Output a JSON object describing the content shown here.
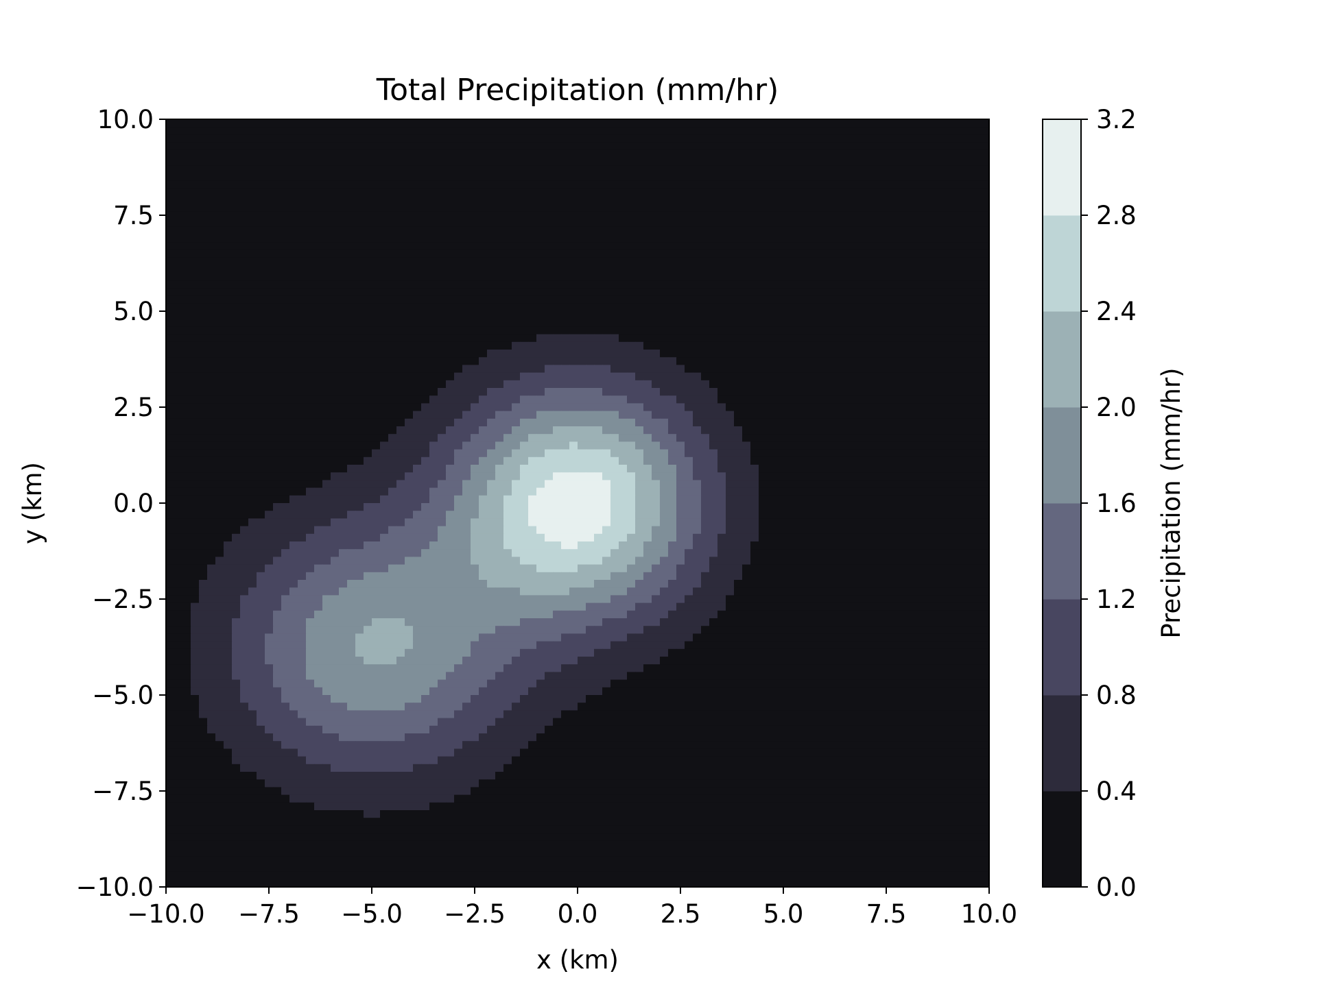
{
  "chart_data": {
    "type": "heatmap",
    "subtype": "filled-contour",
    "title": "Total Precipitation (mm/hr)",
    "xlabel": "x (km)",
    "ylabel": "y (km)",
    "xlim": [
      -10,
      10
    ],
    "ylim": [
      -10,
      10
    ],
    "x_ticks": [
      "−10.0",
      "−7.5",
      "−5.0",
      "−2.5",
      "0.0",
      "2.5",
      "5.0",
      "7.5",
      "10.0"
    ],
    "y_ticks": [
      "−10.0",
      "−7.5",
      "−5.0",
      "−2.5",
      "0.0",
      "2.5",
      "5.0",
      "7.5",
      "10.0"
    ],
    "x_tick_values": [
      -10,
      -7.5,
      -5,
      -2.5,
      0,
      2.5,
      5,
      7.5,
      10
    ],
    "y_tick_values": [
      -10,
      -7.5,
      -5,
      -2.5,
      0,
      2.5,
      5,
      7.5,
      10
    ],
    "grid": false,
    "field": {
      "components": [
        {
          "x0": 0.0,
          "y0": 0.0,
          "amplitude": 3.0,
          "sigma_x": 2.2,
          "sigma_y": 2.2
        },
        {
          "x0": -5.0,
          "y0": -3.8,
          "amplitude": 2.0,
          "sigma_x": 2.5,
          "sigma_y": 2.4
        }
      ]
    },
    "levels": [
      0.0,
      0.4,
      0.8,
      1.2,
      1.6,
      2.0,
      2.4,
      2.8,
      3.2
    ],
    "level_colors": [
      "#111115",
      "#2d2b3b",
      "#484660",
      "#64677f",
      "#7f8f99",
      "#9cb1b5",
      "#bed5d6",
      "#e7f0ef"
    ],
    "colorbar": {
      "label": "Precipitation (mm/hr)",
      "ticks": [
        "0.0",
        "0.4",
        "0.8",
        "1.2",
        "1.6",
        "2.0",
        "2.4",
        "2.8",
        "3.2"
      ],
      "tick_values": [
        0.0,
        0.4,
        0.8,
        1.2,
        1.6,
        2.0,
        2.4,
        2.8,
        3.2
      ],
      "position": "right"
    }
  }
}
